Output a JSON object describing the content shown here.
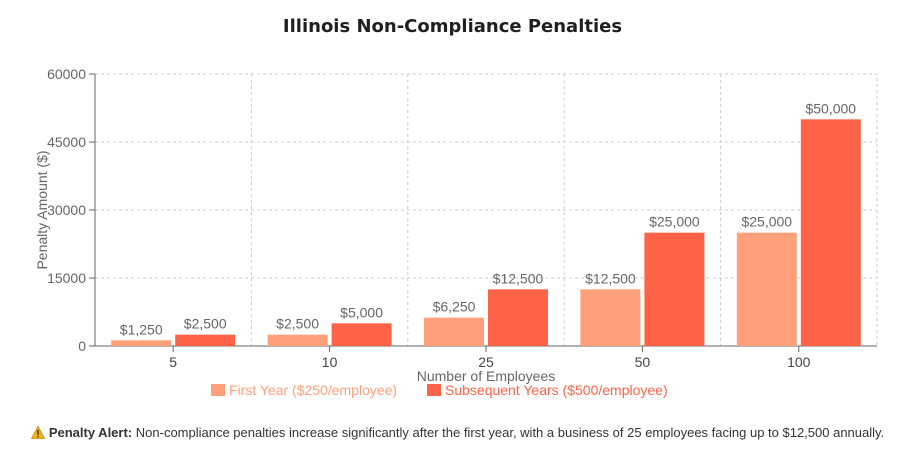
{
  "chart_data": {
    "type": "bar",
    "title": "Illinois Non-Compliance Penalties",
    "xlabel": "Number of Employees",
    "ylabel": "Penalty Amount ($)",
    "categories": [
      "5",
      "10",
      "25",
      "50",
      "100"
    ],
    "series": [
      {
        "name": "First Year ($250/employee)",
        "color": "#FFA07A",
        "values": [
          1250,
          2500,
          6250,
          12500,
          25000
        ],
        "labels": [
          "$1,250",
          "$2,500",
          "$6,250",
          "$12,500",
          "$25,000"
        ]
      },
      {
        "name": "Subsequent Years ($500/employee)",
        "color": "#FF6347",
        "values": [
          2500,
          5000,
          12500,
          25000,
          50000
        ],
        "labels": [
          "$2,500",
          "$5,000",
          "$12,500",
          "$25,000",
          "$50,000"
        ]
      }
    ],
    "ylim": [
      0,
      60000
    ],
    "yticks": [
      "0",
      "15000",
      "30000",
      "45000",
      "60000"
    ],
    "grid": true,
    "legend": "bottom"
  },
  "alert": {
    "icon": "warning-icon",
    "label": "Penalty Alert:",
    "text": "Non-compliance penalties increase significantly after the first year, with a business of 25 employees facing up to $12,500 annually."
  }
}
